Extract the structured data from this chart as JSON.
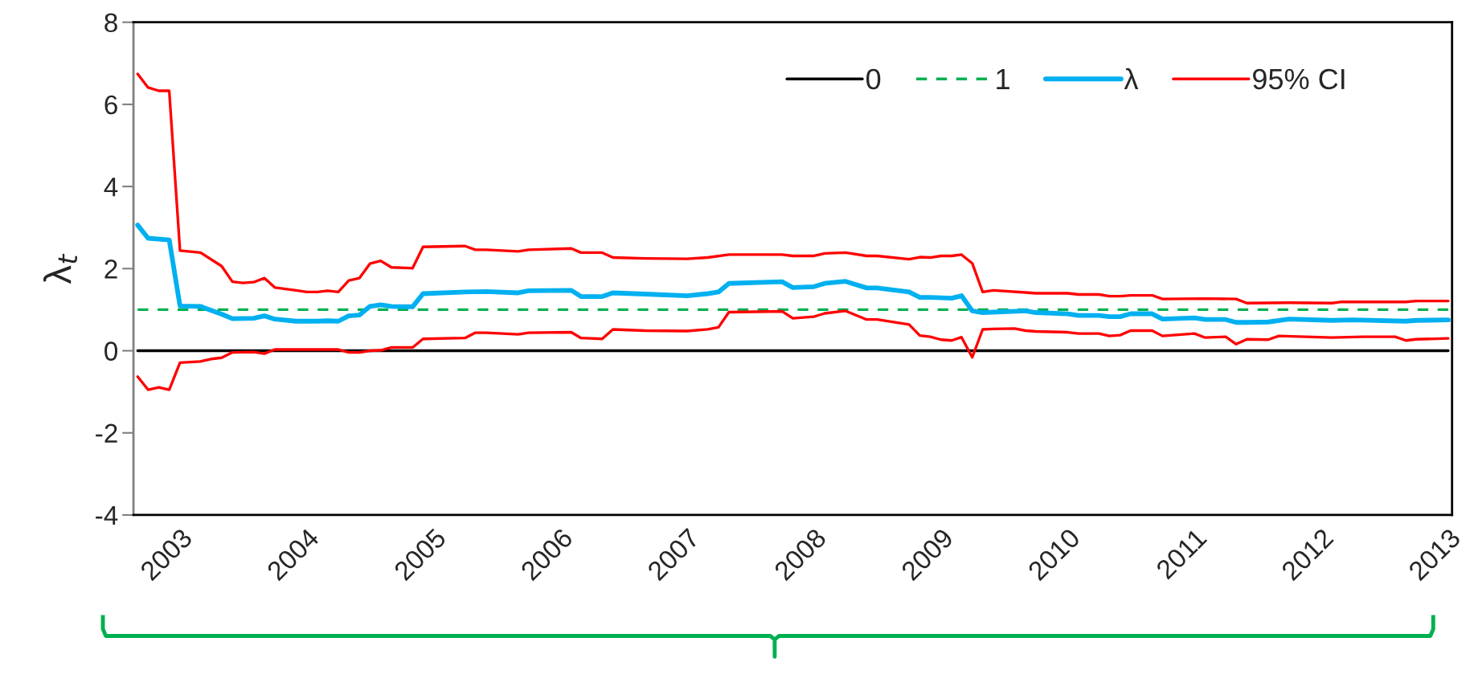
{
  "chart_data": {
    "type": "line",
    "ylabel": "λ$_{t}$",
    "xlim": [
      "2002-08-20",
      "2013-01-12"
    ],
    "xticks": [
      {
        "value": "2003-01",
        "label": "2003"
      },
      {
        "value": "2004-01",
        "label": "2004"
      },
      {
        "value": "2005-01",
        "label": "2005"
      },
      {
        "value": "2006-01",
        "label": "2006"
      },
      {
        "value": "2007-01",
        "label": "2007"
      },
      {
        "value": "2008-01",
        "label": "2008"
      },
      {
        "value": "2009-01",
        "label": "2009"
      },
      {
        "value": "2010-01",
        "label": "2010"
      },
      {
        "value": "2011-01",
        "label": "2011"
      },
      {
        "value": "2012-01",
        "label": "2012"
      },
      {
        "value": "2013-01",
        "label": "2013"
      }
    ],
    "ylim": [
      -4,
      8
    ],
    "yticks": [
      -4,
      -2,
      0,
      2,
      4,
      6,
      8
    ],
    "grid": false,
    "legend": "top right",
    "marker": "none",
    "series": [
      {
        "name": "0",
        "color": "#000000",
        "line_style": "solid",
        "x": [
          "2002-09",
          "2013-01"
        ],
        "values": [
          0,
          0
        ]
      },
      {
        "name": "1",
        "color": "#00b050",
        "line_style": "dashed",
        "x": [
          "2002-09",
          "2013-01"
        ],
        "values": [
          1,
          1
        ]
      },
      {
        "name": "λ",
        "color": "#00b0f0",
        "line_style": "solid",
        "x": [
          "2002-09",
          "2002-10",
          "2002-12",
          "2003-01",
          "2003-03",
          "2003-05",
          "2003-06",
          "2003-08",
          "2003-09",
          "2003-10",
          "2003-12",
          "2004-02",
          "2004-03",
          "2004-04",
          "2004-05",
          "2004-06",
          "2004-07",
          "2004-08",
          "2004-09",
          "2004-11",
          "2004-12",
          "2005-04",
          "2005-06",
          "2005-09",
          "2005-10",
          "2006-02",
          "2006-03",
          "2006-05",
          "2006-06",
          "2006-09",
          "2007-01",
          "2007-03",
          "2007-04",
          "2007-05",
          "2007-10",
          "2007-11",
          "2008-01",
          "2008-02",
          "2008-04",
          "2008-06",
          "2008-07",
          "2008-10",
          "2008-11",
          "2008-12",
          "2009-02",
          "2009-03",
          "2009-04",
          "2009-05",
          "2009-09",
          "2009-10",
          "2010-01",
          "2010-02",
          "2010-04",
          "2010-05",
          "2010-06",
          "2010-07",
          "2010-09",
          "2010-10",
          "2011-01",
          "2011-02",
          "2011-04",
          "2011-05",
          "2011-06",
          "2011-08",
          "2011-10",
          "2012-02",
          "2012-04",
          "2012-09",
          "2012-10",
          "2013-01"
        ],
        "values": [
          3.06,
          2.74,
          2.7,
          1.09,
          1.08,
          0.89,
          0.78,
          0.79,
          0.85,
          0.77,
          0.72,
          0.72,
          0.73,
          0.72,
          0.85,
          0.87,
          1.08,
          1.12,
          1.08,
          1.07,
          1.39,
          1.43,
          1.44,
          1.41,
          1.46,
          1.47,
          1.32,
          1.32,
          1.41,
          1.38,
          1.34,
          1.39,
          1.43,
          1.64,
          1.68,
          1.54,
          1.56,
          1.64,
          1.69,
          1.53,
          1.53,
          1.43,
          1.3,
          1.3,
          1.28,
          1.34,
          0.97,
          0.93,
          0.97,
          0.93,
          0.9,
          0.86,
          0.86,
          0.83,
          0.83,
          0.9,
          0.9,
          0.77,
          0.8,
          0.76,
          0.76,
          0.69,
          0.69,
          0.7,
          0.77,
          0.74,
          0.75,
          0.72,
          0.74,
          0.75
        ]
      },
      {
        "name": "95% CI",
        "color": "#ff0000",
        "line_style": "solid",
        "x": [
          "2002-09",
          "2002-10",
          "2002-11",
          "2002-12",
          "2003-01",
          "2003-03",
          "2003-05",
          "2003-06",
          "2003-07",
          "2003-08",
          "2003-09",
          "2003-10",
          "2003-12",
          "2004-01",
          "2004-02",
          "2004-03",
          "2004-04",
          "2004-05",
          "2004-06",
          "2004-07",
          "2004-08",
          "2004-09",
          "2004-11",
          "2004-12",
          "2005-04",
          "2005-05",
          "2005-06",
          "2005-09",
          "2005-10",
          "2006-02",
          "2006-03",
          "2006-05",
          "2006-06",
          "2006-09",
          "2007-01",
          "2007-03",
          "2007-05",
          "2007-10",
          "2007-11",
          "2008-01",
          "2008-02",
          "2008-04",
          "2008-06",
          "2008-07",
          "2008-10",
          "2008-11",
          "2008-12",
          "2009-01",
          "2009-02",
          "2009-03",
          "2009-04",
          "2009-05",
          "2009-06",
          "2009-09",
          "2009-10",
          "2010-01",
          "2010-02",
          "2010-04",
          "2010-05",
          "2010-06",
          "2010-07",
          "2010-09",
          "2010-10",
          "2011-02",
          "2011-05",
          "2011-06",
          "2011-10",
          "2012-02",
          "2012-03",
          "2012-09",
          "2012-10",
          "2013-01"
        ],
        "values": [
          6.74,
          6.41,
          6.33,
          6.33,
          2.44,
          2.39,
          2.06,
          1.68,
          1.65,
          1.67,
          1.77,
          1.54,
          1.47,
          1.43,
          1.43,
          1.46,
          1.43,
          1.71,
          1.77,
          2.12,
          2.19,
          2.03,
          2.01,
          2.53,
          2.55,
          2.46,
          2.46,
          2.42,
          2.46,
          2.49,
          2.39,
          2.39,
          2.27,
          2.25,
          2.24,
          2.27,
          2.34,
          2.34,
          2.31,
          2.31,
          2.37,
          2.39,
          2.31,
          2.31,
          2.23,
          2.28,
          2.27,
          2.31,
          2.31,
          2.34,
          2.13,
          1.43,
          1.47,
          1.42,
          1.4,
          1.4,
          1.37,
          1.37,
          1.33,
          1.33,
          1.35,
          1.35,
          1.26,
          1.27,
          1.26,
          1.16,
          1.17,
          1.16,
          1.19,
          1.19,
          1.21,
          1.21
        ]
      },
      {
        "color": "#ff0000",
        "line_style": "solid",
        "x": [
          "2002-09",
          "2002-10",
          "2002-11",
          "2002-12",
          "2003-01",
          "2003-03",
          "2003-04",
          "2003-05",
          "2003-06",
          "2003-08",
          "2003-09",
          "2003-10",
          "2004-04",
          "2004-05",
          "2004-06",
          "2004-07",
          "2004-08",
          "2004-09",
          "2004-11",
          "2004-12",
          "2005-04",
          "2005-05",
          "2005-06",
          "2005-09",
          "2005-10",
          "2006-02",
          "2006-03",
          "2006-05",
          "2006-06",
          "2006-09",
          "2007-01",
          "2007-03",
          "2007-04",
          "2007-05",
          "2007-10",
          "2007-11",
          "2008-01",
          "2008-02",
          "2008-04",
          "2008-06",
          "2008-07",
          "2008-10",
          "2008-11",
          "2008-12",
          "2009-01",
          "2009-02",
          "2009-03",
          "2009-04",
          "2009-05",
          "2009-06",
          "2009-08",
          "2009-09",
          "2009-10",
          "2010-01",
          "2010-02",
          "2010-04",
          "2010-05",
          "2010-06",
          "2010-07",
          "2010-09",
          "2010-10",
          "2011-01",
          "2011-02",
          "2011-04",
          "2011-05",
          "2011-06",
          "2011-08",
          "2011-09",
          "2012-02",
          "2012-05",
          "2012-08",
          "2012-09",
          "2012-10",
          "2013-01"
        ],
        "values": [
          -0.63,
          -0.95,
          -0.89,
          -0.95,
          -0.29,
          -0.26,
          -0.2,
          -0.17,
          -0.04,
          -0.03,
          -0.07,
          0.03,
          0.03,
          -0.04,
          -0.04,
          0,
          0.01,
          0.08,
          0.08,
          0.29,
          0.31,
          0.44,
          0.44,
          0.4,
          0.44,
          0.45,
          0.31,
          0.29,
          0.52,
          0.49,
          0.48,
          0.52,
          0.57,
          0.94,
          0.96,
          0.79,
          0.83,
          0.91,
          0.97,
          0.76,
          0.76,
          0.64,
          0.37,
          0.34,
          0.27,
          0.25,
          0.33,
          -0.16,
          0.52,
          0.53,
          0.54,
          0.49,
          0.47,
          0.45,
          0.42,
          0.42,
          0.36,
          0.38,
          0.49,
          0.49,
          0.36,
          0.42,
          0.32,
          0.34,
          0.16,
          0.28,
          0.27,
          0.36,
          0.32,
          0.34,
          0.34,
          0.25,
          0.28,
          0.3
        ]
      }
    ]
  }
}
